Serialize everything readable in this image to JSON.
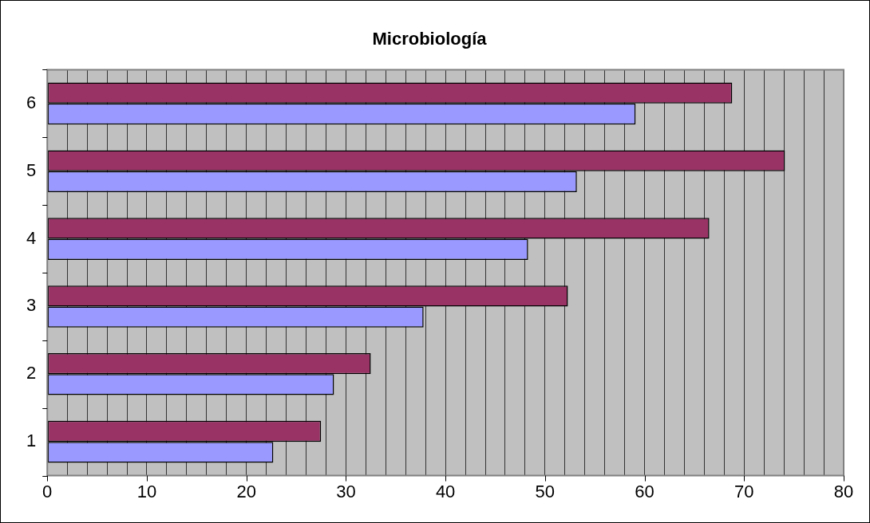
{
  "chart_data": {
    "type": "bar",
    "orientation": "horizontal",
    "title": "Microbiología",
    "categories": [
      "6",
      "5",
      "4",
      "3",
      "2",
      "1"
    ],
    "series": [
      {
        "color": "#993366",
        "values": [
          68.8,
          74.1,
          66.5,
          52.3,
          32.5,
          27.5
        ]
      },
      {
        "color": "#9999ff",
        "values": [
          59.1,
          53.2,
          48.3,
          37.8,
          28.8,
          22.7
        ]
      }
    ],
    "xlim": [
      0,
      80
    ],
    "xticks": [
      0,
      {
        "value": 2,
        "label": null
      },
      {
        "value": 4,
        "label": null
      },
      {
        "value": 6,
        "label": null
      },
      {
        "value": 8,
        "label": null
      },
      10,
      {
        "value": 12,
        "label": null
      },
      {
        "value": 14,
        "label": null
      },
      {
        "value": 16,
        "label": null
      },
      {
        "value": 18,
        "label": null
      },
      20,
      {
        "value": 22,
        "label": null
      },
      {
        "value": 24,
        "label": null
      },
      {
        "value": 26,
        "label": null
      },
      {
        "value": 28,
        "label": null
      },
      30,
      {
        "value": 32,
        "label": null
      },
      {
        "value": 34,
        "label": null
      },
      {
        "value": 36,
        "label": null
      },
      {
        "value": 38,
        "label": null
      },
      40,
      {
        "value": 42,
        "label": null
      },
      {
        "value": 44,
        "label": null
      },
      {
        "value": 46,
        "label": null
      },
      {
        "value": 48,
        "label": null
      },
      50,
      {
        "value": 52,
        "label": null
      },
      {
        "value": 54,
        "label": null
      },
      {
        "value": 56,
        "label": null
      },
      {
        "value": 58,
        "label": null
      },
      60,
      {
        "value": 62,
        "label": null
      },
      {
        "value": 64,
        "label": null
      },
      {
        "value": 66,
        "label": null
      },
      {
        "value": 68,
        "label": null
      },
      70,
      {
        "value": 72,
        "label": null
      },
      {
        "value": 74,
        "label": null
      },
      {
        "value": 76,
        "label": null
      },
      {
        "value": 78,
        "label": null
      },
      80
    ],
    "grid": "x",
    "legend": false
  }
}
